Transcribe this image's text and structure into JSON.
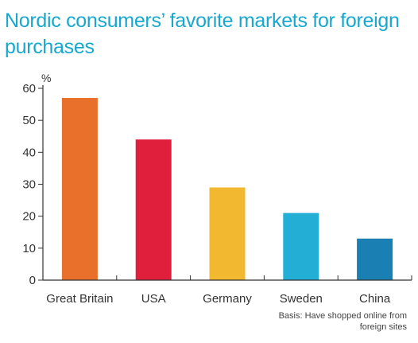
{
  "chart_data": {
    "type": "bar",
    "title": "Nordic consumers’ favorite markets for foreign purchases",
    "ylabel": "%",
    "xlabel": "",
    "categories": [
      "Great Britain",
      "USA",
      "Germany",
      "Sweden",
      "China"
    ],
    "values": [
      57,
      44,
      29,
      21,
      13
    ],
    "colors": [
      "#e8702a",
      "#e01f3d",
      "#f2b830",
      "#23aed6",
      "#1a7fb2"
    ],
    "ylim": [
      0,
      60
    ],
    "yticks": [
      0,
      10,
      20,
      30,
      40,
      50,
      60
    ],
    "grid": false,
    "legend": "none",
    "note": [
      "Basis: Have shopped online from",
      "foreign sites"
    ]
  }
}
